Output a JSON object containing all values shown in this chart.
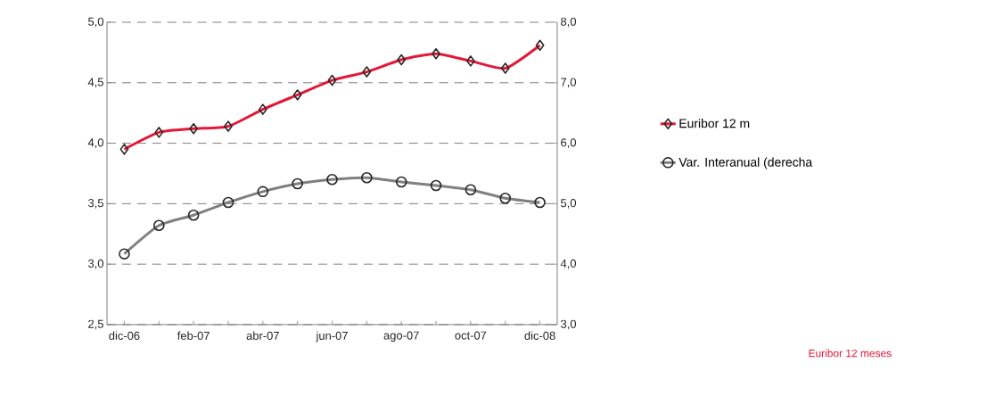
{
  "chart_data": {
    "type": "line",
    "categories": [
      "dic-06",
      null,
      "feb-07",
      null,
      "abr-07",
      null,
      "jun-07",
      null,
      "ago-07",
      null,
      "oct-07",
      null,
      "dic-08"
    ],
    "series": [
      {
        "name": "Euribor 12 m",
        "color": "#e31837",
        "marker": "diamond",
        "values": [
          3.95,
          4.09,
          4.12,
          4.14,
          4.28,
          4.4,
          4.52,
          4.59,
          4.69,
          4.74,
          4.68,
          4.62,
          4.81
        ]
      },
      {
        "name": "Var. Interanual (derecha",
        "color": "#808080",
        "marker": "circle",
        "axis": "y2",
        "values": [
          4.17,
          4.64,
          4.81,
          5.02,
          5.2,
          5.33,
          5.4,
          5.43,
          5.36,
          5.3,
          5.23,
          5.09,
          5.02
        ]
      }
    ],
    "ylim": [
      2.5,
      5.0
    ],
    "yticks": [
      {
        "value": 2.5,
        "label": "2,5"
      },
      {
        "value": 3.0,
        "label": "3,0"
      },
      {
        "value": 3.5,
        "label": "3,5"
      },
      {
        "value": 4.0,
        "label": "4,0"
      },
      {
        "value": 4.5,
        "label": "4,5"
      },
      {
        "value": 5.0,
        "label": "5,0"
      }
    ],
    "y2lim": [
      3.0,
      8.0
    ],
    "y2ticks": [
      {
        "value": 3.0,
        "label": "3,0"
      },
      {
        "value": 4.0,
        "label": "4,0"
      },
      {
        "value": 5.0,
        "label": "5,0"
      },
      {
        "value": 6.0,
        "label": "6,0"
      },
      {
        "value": 7.0,
        "label": "7,0"
      },
      {
        "value": 8.0,
        "label": "8,0"
      }
    ],
    "grid": "y",
    "legend": "right",
    "annotations": [
      "Euribor 12 meses"
    ]
  }
}
